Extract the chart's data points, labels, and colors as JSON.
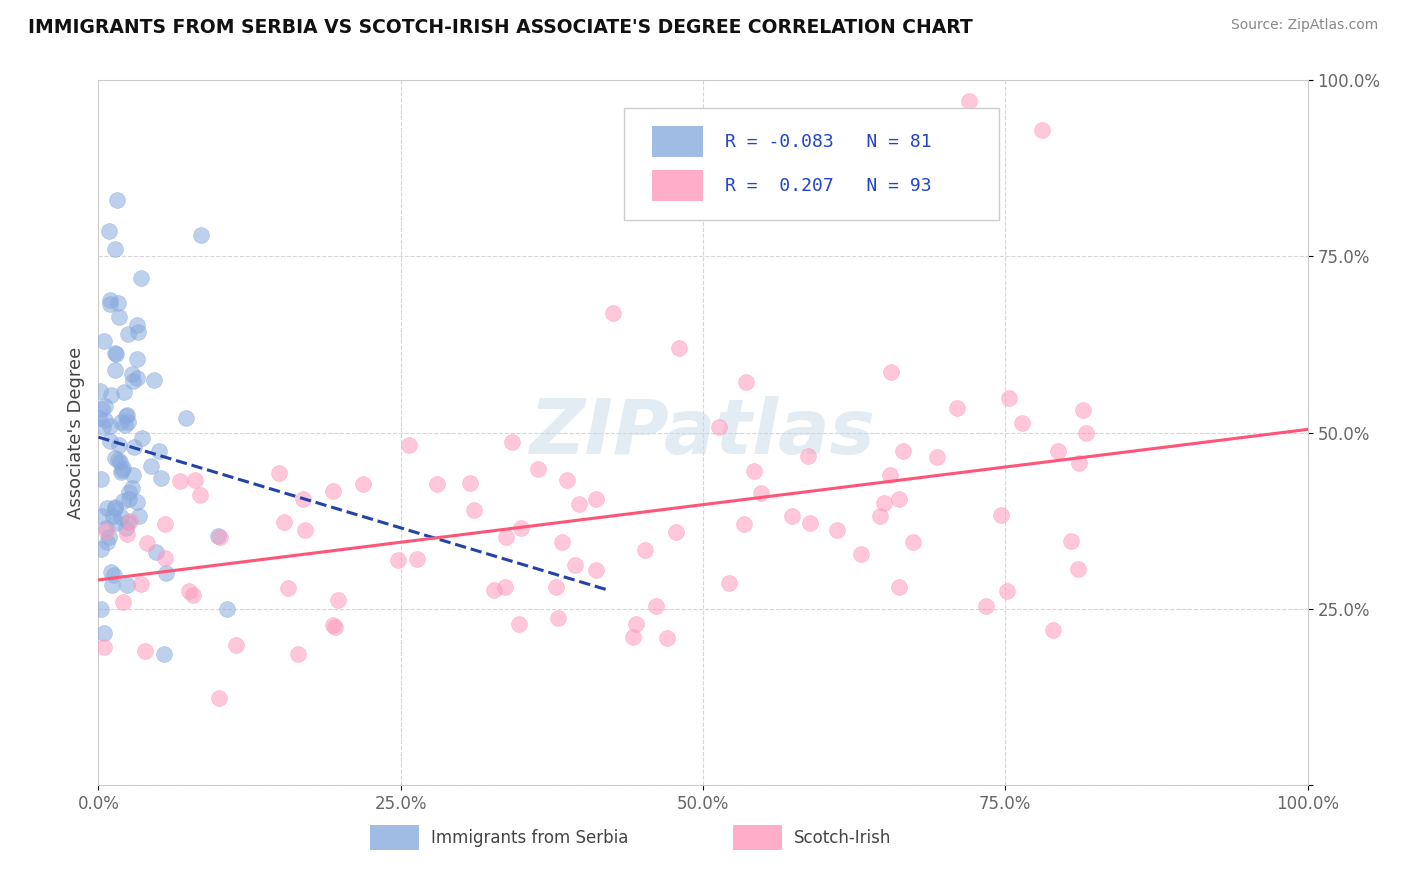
{
  "title": "IMMIGRANTS FROM SERBIA VS SCOTCH-IRISH ASSOCIATE'S DEGREE CORRELATION CHART",
  "source": "Source: ZipAtlas.com",
  "ylabel": "Associate's Degree",
  "xlim": [
    0.0,
    1.0
  ],
  "ylim": [
    0.0,
    1.0
  ],
  "xticks": [
    0.0,
    0.25,
    0.5,
    0.75,
    1.0
  ],
  "xticklabels": [
    "0.0%",
    "25.0%",
    "50.0%",
    "75.0%",
    "100.0%"
  ],
  "yticks": [
    0.0,
    0.25,
    0.5,
    0.75,
    1.0
  ],
  "yticklabels": [
    "",
    "25.0%",
    "50.0%",
    "75.0%",
    "100.0%"
  ],
  "blue_color": "#88AADE",
  "pink_color": "#FF99BB",
  "blue_line_color": "#2244AA",
  "pink_line_color": "#FF5577",
  "watermark_color": "#C8D8E8",
  "legend_R1": "-0.083",
  "legend_N1": "81",
  "legend_R2": "0.207",
  "legend_N2": "93",
  "serbia_R": -0.083,
  "serbia_N": 81,
  "scotch_R": 0.207,
  "scotch_N": 93
}
